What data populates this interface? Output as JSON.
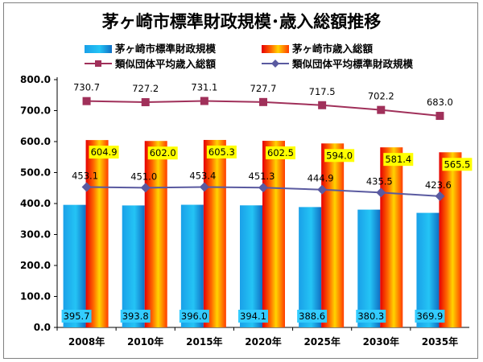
{
  "chart_data": {
    "type": "bar",
    "title": "茅ヶ崎市標準財政規模･歳入総額推移",
    "categories": [
      "2008年",
      "2010年",
      "2015年",
      "2020年",
      "2025年",
      "2030年",
      "2035年"
    ],
    "ylim": [
      0,
      800
    ],
    "yticks": [
      "0.0",
      "100.0",
      "200.0",
      "300.0",
      "400.0",
      "500.0",
      "600.0",
      "700.0",
      "800.0"
    ],
    "ytick_values": [
      0,
      100,
      200,
      300,
      400,
      500,
      600,
      700,
      800
    ],
    "series": [
      {
        "name": "茅ヶ崎市標準財政規模",
        "kind": "bar",
        "color": "#1e9be6",
        "values": [
          395.7,
          393.8,
          396.0,
          394.1,
          388.6,
          380.3,
          369.9
        ],
        "labels": [
          "395.7",
          "393.8",
          "396.0",
          "394.1",
          "388.6",
          "380.3",
          "369.9"
        ]
      },
      {
        "name": "茅ヶ崎市歳入総額",
        "kind": "bar",
        "color": "#ff3300",
        "values": [
          604.9,
          602.0,
          605.3,
          602.5,
          594.0,
          581.4,
          565.5
        ],
        "labels": [
          "604.9",
          "602.0",
          "605.3",
          "602.5",
          "594.0",
          "581.4",
          "565.5"
        ]
      },
      {
        "name": "類似団体平均歳入総額",
        "kind": "line",
        "color": "#a0305a",
        "values": [
          730.7,
          727.2,
          731.1,
          727.7,
          717.5,
          702.2,
          683.0
        ],
        "labels": [
          "730.7",
          "727.2",
          "731.1",
          "727.7",
          "717.5",
          "702.2",
          "683.0"
        ]
      },
      {
        "name": "類似団体平均標準財政規模",
        "kind": "line",
        "color": "#5a5aa0",
        "values": [
          453.1,
          451.0,
          453.4,
          451.3,
          444.9,
          435.5,
          423.6
        ],
        "labels": [
          "453.1",
          "451.0",
          "453.4",
          "451.3",
          "444.9",
          "435.5",
          "423.6"
        ]
      }
    ],
    "grid": false
  }
}
